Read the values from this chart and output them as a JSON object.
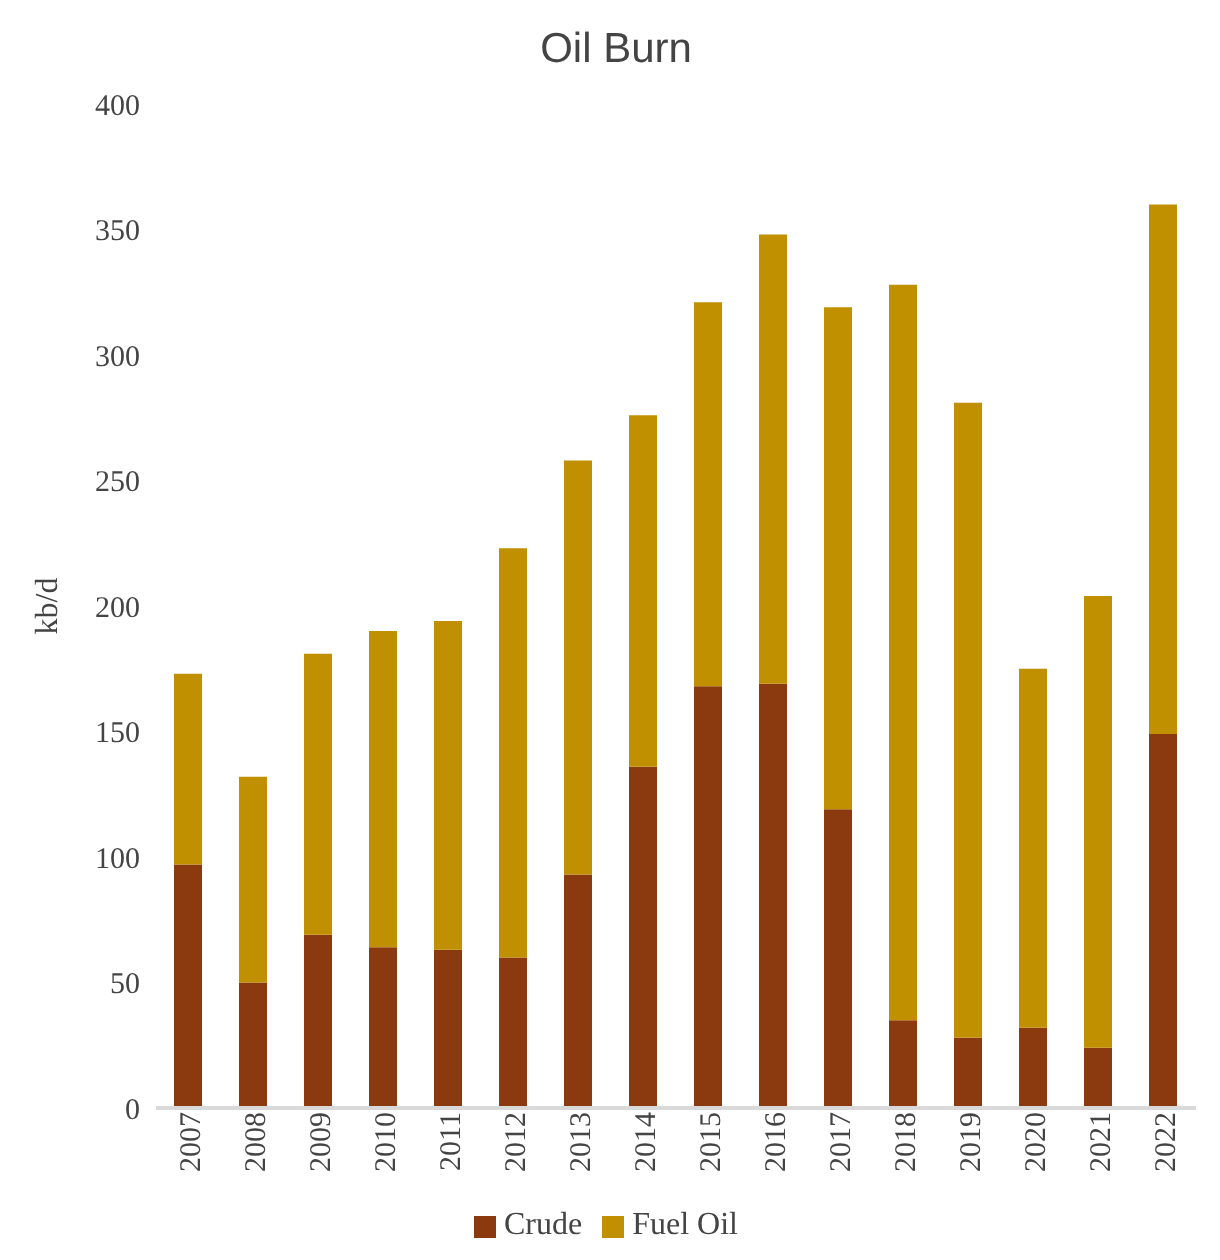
{
  "chart_data": {
    "type": "bar",
    "title": "Oil Burn",
    "ylabel": "kb/d",
    "stacked": true,
    "grid": false,
    "legend": "bottom",
    "categories": [
      "2007",
      "2008",
      "2009",
      "2010",
      "2011",
      "2012",
      "2013",
      "2014",
      "2015",
      "2016",
      "2017",
      "2018",
      "2019",
      "2020",
      "2021",
      "2022"
    ],
    "series": [
      {
        "name": "Crude",
        "color": "#8b3a0f",
        "values": [
          97,
          50,
          69,
          64,
          63,
          60,
          93,
          136,
          168,
          169,
          119,
          35,
          28,
          32,
          24,
          149
        ]
      },
      {
        "name": "Fuel Oil",
        "color": "#c09000",
        "values": [
          76,
          82,
          112,
          126,
          131,
          163,
          165,
          140,
          153,
          179,
          200,
          293,
          253,
          143,
          180,
          211
        ]
      }
    ],
    "ylim": [
      0,
      400
    ],
    "yticks": [
      0,
      50,
      100,
      150,
      200,
      250,
      300,
      350,
      400
    ]
  }
}
